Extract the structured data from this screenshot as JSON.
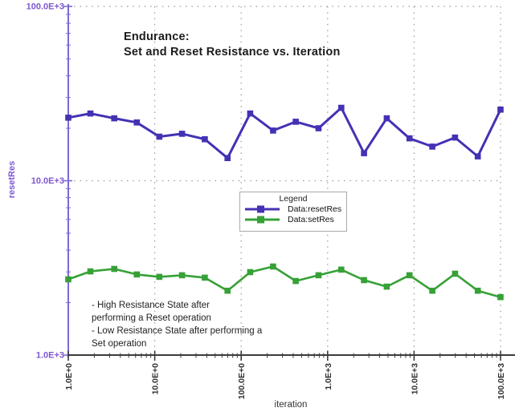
{
  "header": {
    "title_line1": "Endurance:",
    "title_line2": "Set and Reset Resistance vs. Iteration"
  },
  "annotation": {
    "lines": [
      "- High Resistance State after",
      "performing a Reset operation",
      "- Low Resistance State after performing a",
      "Set operation"
    ]
  },
  "colors": {
    "reset_series": "#4332b4",
    "set_series": "#36a136",
    "axis_purple": "#7e57d0",
    "axis_line_purple": "#7a6ad8",
    "axis_dark": "#3c3c3c",
    "tick_text_dark": "#2e2e2e",
    "gridline": "#9a9a9a",
    "legend_border": "#ababab"
  },
  "chart_data": {
    "type": "line",
    "title": "Endurance: Set and Reset Resistance vs. Iteration",
    "xlabel": "iteration",
    "ylabel": "resetRes",
    "x_scale": "log",
    "y_scale": "log",
    "xlim": [
      1,
      100000
    ],
    "ylim": [
      1000,
      100000
    ],
    "grid": "dotted",
    "x_tick_values": [
      1,
      10,
      100,
      1000,
      10000,
      100000
    ],
    "x_tick_labels": [
      "1.0E+0",
      "10.0E+0",
      "100.0E+0",
      "1.0E+3",
      "10.0E+3",
      "100.0E+3"
    ],
    "y_tick_values": [
      1000,
      10000,
      100000
    ],
    "y_tick_labels": [
      "1.0E+3",
      "10.0E+3",
      "100.0E+3"
    ],
    "legend": {
      "title": "Legend",
      "position": "inside-center"
    },
    "x": [
      1,
      1.8,
      3.4,
      6.2,
      11.3,
      20.7,
      37.9,
      69.5,
      127,
      234,
      428,
      785,
      1438,
      2637,
      4833,
      8859,
      16238,
      29764,
      54556,
      100000
    ],
    "series": [
      {
        "name": "Data:resetRes",
        "color": "#4332b4",
        "values": [
          23000,
          24300,
          22800,
          21600,
          17900,
          18600,
          17300,
          13500,
          24300,
          19400,
          21800,
          20000,
          26200,
          14400,
          22800,
          17500,
          15700,
          17700,
          13800,
          25600
        ]
      },
      {
        "name": "Data:setRes",
        "color": "#36a136",
        "values": [
          2720,
          3020,
          3120,
          2900,
          2810,
          2870,
          2780,
          2340,
          2990,
          3220,
          2660,
          2870,
          3090,
          2690,
          2470,
          2870,
          2340,
          2930,
          2340,
          2150
        ]
      }
    ]
  }
}
